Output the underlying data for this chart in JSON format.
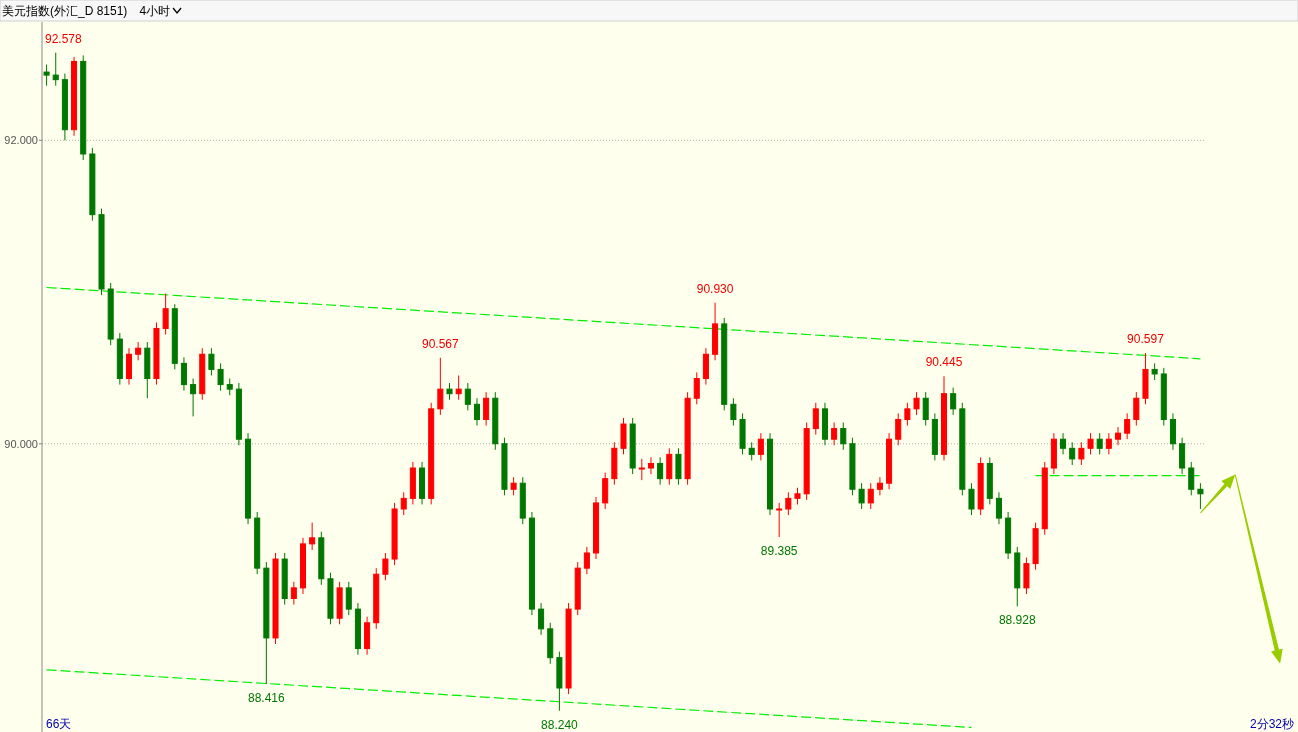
{
  "chart_data": {
    "type": "candlestick",
    "title": "美元指数(外汇_D 8151)",
    "subtitle": "4小时",
    "categories": [
      null,
      null,
      null,
      null,
      null,
      null,
      null,
      null,
      null,
      null,
      null,
      null,
      null,
      null,
      null,
      null,
      null,
      null,
      null,
      null,
      null,
      null,
      null,
      null,
      null,
      null,
      null,
      null,
      null,
      null,
      null,
      null,
      null,
      null,
      null,
      null,
      null,
      null,
      null,
      null,
      null,
      null,
      null,
      null,
      null,
      null,
      null,
      null,
      null,
      null,
      null,
      null,
      null,
      null,
      null,
      null,
      null,
      null,
      null,
      null,
      null,
      null,
      null,
      null,
      null,
      null,
      null,
      null,
      null,
      null,
      null,
      null,
      null,
      null,
      null,
      null,
      null,
      null,
      null,
      null,
      null,
      null,
      null,
      null,
      null,
      null,
      null,
      null,
      null,
      null,
      null,
      null,
      null,
      null,
      null,
      null,
      null,
      null,
      null,
      null,
      null,
      null,
      null,
      null,
      null,
      null,
      null,
      null,
      null,
      null,
      null,
      null,
      null,
      null,
      null,
      null,
      null,
      null,
      null,
      null,
      null,
      null,
      null,
      null,
      null,
      null,
      null
    ],
    "ohlc": [
      [
        92.45,
        92.5,
        92.36,
        92.43
      ],
      [
        92.43,
        92.578,
        92.36,
        92.4
      ],
      [
        92.4,
        92.44,
        92.0,
        92.07
      ],
      [
        92.07,
        92.55,
        92.03,
        92.52
      ],
      [
        92.52,
        92.56,
        91.87,
        91.91
      ],
      [
        91.91,
        91.95,
        91.47,
        91.51
      ],
      [
        91.51,
        91.55,
        90.98,
        91.02
      ],
      [
        91.02,
        91.06,
        90.65,
        90.69
      ],
      [
        90.69,
        90.73,
        90.39,
        90.43
      ],
      [
        90.43,
        90.63,
        90.39,
        90.59
      ],
      [
        90.59,
        90.67,
        90.55,
        90.63
      ],
      [
        90.63,
        90.67,
        90.3,
        90.43
      ],
      [
        90.43,
        90.8,
        90.39,
        90.76
      ],
      [
        90.76,
        90.99,
        90.72,
        90.89
      ],
      [
        90.89,
        90.92,
        90.49,
        90.53
      ],
      [
        90.53,
        90.57,
        90.35,
        90.39
      ],
      [
        90.39,
        90.43,
        90.18,
        90.33
      ],
      [
        90.33,
        90.63,
        90.29,
        90.59
      ],
      [
        90.59,
        90.63,
        90.45,
        90.49
      ],
      [
        90.49,
        90.53,
        90.35,
        90.39
      ],
      [
        90.39,
        90.43,
        90.32,
        90.36
      ],
      [
        90.36,
        90.4,
        89.99,
        90.03
      ],
      [
        90.03,
        90.07,
        89.47,
        89.51
      ],
      [
        89.51,
        89.55,
        89.14,
        89.18
      ],
      [
        89.18,
        89.22,
        88.416,
        88.72
      ],
      [
        88.72,
        89.28,
        88.68,
        89.24
      ],
      [
        89.24,
        89.28,
        88.94,
        88.98
      ],
      [
        88.98,
        89.09,
        88.94,
        89.05
      ],
      [
        89.05,
        89.38,
        89.01,
        89.34
      ],
      [
        89.34,
        89.48,
        89.3,
        89.38
      ],
      [
        89.38,
        89.42,
        89.07,
        89.11
      ],
      [
        89.11,
        89.15,
        88.81,
        88.85
      ],
      [
        88.85,
        89.09,
        88.81,
        89.05
      ],
      [
        89.05,
        89.09,
        88.87,
        88.91
      ],
      [
        88.91,
        88.95,
        88.61,
        88.65
      ],
      [
        88.65,
        88.86,
        88.61,
        88.82
      ],
      [
        88.82,
        89.18,
        88.78,
        89.14
      ],
      [
        89.14,
        89.28,
        89.1,
        89.24
      ],
      [
        89.24,
        89.61,
        89.2,
        89.57
      ],
      [
        89.57,
        89.68,
        89.53,
        89.64
      ],
      [
        89.64,
        89.88,
        89.6,
        89.84
      ],
      [
        89.84,
        89.88,
        89.6,
        89.64
      ],
      [
        89.64,
        90.27,
        89.6,
        90.23
      ],
      [
        90.23,
        90.567,
        90.19,
        90.36
      ],
      [
        90.36,
        90.4,
        90.29,
        90.33
      ],
      [
        90.33,
        90.45,
        90.29,
        90.36
      ],
      [
        90.36,
        90.4,
        90.22,
        90.26
      ],
      [
        90.26,
        90.3,
        90.12,
        90.16
      ],
      [
        90.16,
        90.34,
        90.12,
        90.3
      ],
      [
        90.3,
        90.34,
        89.96,
        90.0
      ],
      [
        90.0,
        90.04,
        89.66,
        89.7
      ],
      [
        89.7,
        89.78,
        89.66,
        89.74
      ],
      [
        89.74,
        89.78,
        89.47,
        89.51
      ],
      [
        89.51,
        89.55,
        88.87,
        88.91
      ],
      [
        88.91,
        88.95,
        88.74,
        88.78
      ],
      [
        88.78,
        88.82,
        88.55,
        88.59
      ],
      [
        88.59,
        88.63,
        88.24,
        88.39
      ],
      [
        88.39,
        88.95,
        88.35,
        88.91
      ],
      [
        88.91,
        89.22,
        88.87,
        89.18
      ],
      [
        89.18,
        89.32,
        89.14,
        89.28
      ],
      [
        89.28,
        89.65,
        89.24,
        89.61
      ],
      [
        89.61,
        89.81,
        89.57,
        89.77
      ],
      [
        89.77,
        90.01,
        89.73,
        89.97
      ],
      [
        89.97,
        90.17,
        89.93,
        90.13
      ],
      [
        90.13,
        90.17,
        89.8,
        89.84
      ],
      [
        89.84,
        89.9,
        89.76,
        89.84
      ],
      [
        89.84,
        89.91,
        89.8,
        89.87
      ],
      [
        89.87,
        89.91,
        89.73,
        89.77
      ],
      [
        89.77,
        89.97,
        89.73,
        89.93
      ],
      [
        89.93,
        89.97,
        89.73,
        89.77
      ],
      [
        89.77,
        90.34,
        89.73,
        90.3
      ],
      [
        90.3,
        90.47,
        90.26,
        90.43
      ],
      [
        90.43,
        90.63,
        90.39,
        90.59
      ],
      [
        90.59,
        90.93,
        90.55,
        90.79
      ],
      [
        90.79,
        90.83,
        90.22,
        90.26
      ],
      [
        90.26,
        90.3,
        90.12,
        90.16
      ],
      [
        90.16,
        90.2,
        89.93,
        89.97
      ],
      [
        89.97,
        90.01,
        89.89,
        89.93
      ],
      [
        89.93,
        90.07,
        89.89,
        90.03
      ],
      [
        90.03,
        90.07,
        89.53,
        89.57
      ],
      [
        89.57,
        89.61,
        89.385,
        89.57
      ],
      [
        89.57,
        89.68,
        89.53,
        89.64
      ],
      [
        89.64,
        89.71,
        89.6,
        89.67
      ],
      [
        89.67,
        90.14,
        89.63,
        90.1
      ],
      [
        90.1,
        90.27,
        90.06,
        90.23
      ],
      [
        90.23,
        90.27,
        89.99,
        90.03
      ],
      [
        90.03,
        90.14,
        89.99,
        90.1
      ],
      [
        90.1,
        90.14,
        89.96,
        90.0
      ],
      [
        90.0,
        90.04,
        89.66,
        89.7
      ],
      [
        89.7,
        89.74,
        89.57,
        89.61
      ],
      [
        89.61,
        89.74,
        89.57,
        89.7
      ],
      [
        89.7,
        89.78,
        89.66,
        89.74
      ],
      [
        89.74,
        90.07,
        89.7,
        90.03
      ],
      [
        90.03,
        90.2,
        89.99,
        90.16
      ],
      [
        90.16,
        90.27,
        90.12,
        90.23
      ],
      [
        90.23,
        90.34,
        90.19,
        90.3
      ],
      [
        90.3,
        90.34,
        90.12,
        90.16
      ],
      [
        90.16,
        90.2,
        89.89,
        89.93
      ],
      [
        89.93,
        90.445,
        89.89,
        90.33
      ],
      [
        90.33,
        90.37,
        90.19,
        90.23
      ],
      [
        90.23,
        90.27,
        89.66,
        89.7
      ],
      [
        89.7,
        89.74,
        89.53,
        89.57
      ],
      [
        89.57,
        89.91,
        89.53,
        89.87
      ],
      [
        89.87,
        89.91,
        89.6,
        89.64
      ],
      [
        89.64,
        89.68,
        89.47,
        89.51
      ],
      [
        89.51,
        89.55,
        89.24,
        89.28
      ],
      [
        89.28,
        89.32,
        88.928,
        89.05
      ],
      [
        89.05,
        89.25,
        89.01,
        89.21
      ],
      [
        89.21,
        89.48,
        89.17,
        89.44
      ],
      [
        89.44,
        89.88,
        89.4,
        89.84
      ],
      [
        89.84,
        90.07,
        89.8,
        90.03
      ],
      [
        90.03,
        90.07,
        89.93,
        89.97
      ],
      [
        89.97,
        90.01,
        89.86,
        89.9
      ],
      [
        89.9,
        90.01,
        89.86,
        89.97
      ],
      [
        89.97,
        90.07,
        89.93,
        90.03
      ],
      [
        90.03,
        90.07,
        89.93,
        89.97
      ],
      [
        89.97,
        90.07,
        89.93,
        90.03
      ],
      [
        90.03,
        90.11,
        89.99,
        90.07
      ],
      [
        90.07,
        90.2,
        90.03,
        90.16
      ],
      [
        90.16,
        90.34,
        90.12,
        90.3
      ],
      [
        90.3,
        90.597,
        90.26,
        90.49
      ],
      [
        90.49,
        90.53,
        90.42,
        90.46
      ],
      [
        90.46,
        90.5,
        90.12,
        90.16
      ],
      [
        90.16,
        90.2,
        89.96,
        90.0
      ],
      [
        90.0,
        90.04,
        89.8,
        89.84
      ],
      [
        89.84,
        89.88,
        89.66,
        89.7
      ],
      [
        89.7,
        89.74,
        89.57,
        89.67
      ]
    ],
    "series": [
      {
        "type": "line",
        "values": [
          91.03,
          null,
          null,
          null,
          null,
          null,
          null,
          null,
          null,
          null,
          null,
          null,
          null,
          null,
          null,
          null,
          null,
          null,
          null,
          null,
          null,
          null,
          null,
          null,
          null,
          null,
          null,
          null,
          null,
          null,
          null,
          null,
          null,
          null,
          null,
          null,
          null,
          null,
          null,
          null,
          null,
          null,
          null,
          null,
          null,
          null,
          null,
          null,
          null,
          null,
          null,
          null,
          null,
          null,
          null,
          null,
          null,
          null,
          null,
          null,
          null,
          null,
          null,
          null,
          null,
          null,
          null,
          null,
          null,
          null,
          null,
          null,
          null,
          null,
          null,
          null,
          null,
          null,
          null,
          null,
          null,
          null,
          null,
          null,
          null,
          null,
          null,
          null,
          null,
          null,
          null,
          null,
          null,
          null,
          null,
          null,
          null,
          null,
          null,
          null,
          null,
          null,
          null,
          null,
          null,
          null,
          null,
          null,
          null,
          null,
          null,
          null,
          null,
          null,
          null,
          null,
          null,
          null,
          null,
          null,
          null,
          null,
          null,
          null,
          null,
          null,
          90.56
        ],
        "color": "#00ee00"
      },
      {
        "type": "line",
        "values": [
          88.51,
          null,
          null,
          null,
          null,
          null,
          null,
          null,
          null,
          null,
          null,
          null,
          null,
          null,
          null,
          null,
          null,
          null,
          null,
          null,
          null,
          null,
          null,
          null,
          null,
          null,
          null,
          null,
          null,
          null,
          null,
          null,
          null,
          null,
          null,
          null,
          null,
          null,
          null,
          null,
          null,
          null,
          null,
          null,
          null,
          null,
          null,
          null,
          null,
          null,
          null,
          null,
          null,
          null,
          null,
          null,
          null,
          null,
          null,
          null,
          null,
          null,
          null,
          null,
          null,
          null,
          null,
          null,
          null,
          null,
          null,
          null,
          null,
          null,
          null,
          null,
          null,
          null,
          null,
          null,
          null,
          null,
          null,
          null,
          null,
          null,
          null,
          null,
          null,
          null,
          null,
          null,
          null,
          null,
          null,
          null,
          null,
          null,
          null,
          null,
          null,
          88.13,
          null,
          null,
          null,
          null,
          null,
          null,
          null,
          null,
          null,
          null,
          null,
          null,
          null,
          null,
          null,
          null,
          null,
          null,
          null,
          null,
          null,
          null,
          null,
          null,
          null
        ],
        "color": "#00ee00"
      },
      {
        "type": "line",
        "values": [
          null,
          null,
          null,
          null,
          null,
          null,
          null,
          null,
          null,
          null,
          null,
          null,
          null,
          null,
          null,
          null,
          null,
          null,
          null,
          null,
          null,
          null,
          null,
          null,
          null,
          null,
          null,
          null,
          null,
          null,
          null,
          null,
          null,
          null,
          null,
          null,
          null,
          null,
          null,
          null,
          null,
          null,
          null,
          null,
          null,
          null,
          null,
          null,
          null,
          null,
          null,
          null,
          null,
          null,
          null,
          null,
          null,
          null,
          null,
          null,
          null,
          null,
          null,
          null,
          null,
          null,
          null,
          null,
          null,
          null,
          null,
          null,
          null,
          null,
          null,
          null,
          null,
          null,
          null,
          null,
          null,
          null,
          null,
          null,
          null,
          null,
          null,
          null,
          null,
          null,
          null,
          null,
          null,
          null,
          null,
          null,
          null,
          null,
          null,
          null,
          null,
          null,
          null,
          null,
          null,
          null,
          null,
          null,
          89.79,
          null,
          null,
          null,
          null,
          null,
          null,
          null,
          null,
          null,
          null,
          null,
          null,
          null,
          null,
          null,
          null,
          null,
          89.79
        ],
        "color": "#00ee00"
      }
    ],
    "line_style": "dashed",
    "ylim": [
      88.1,
      92.78
    ],
    "yticks": [
      {
        "value": 92,
        "label": "92.000"
      },
      {
        "value": 90,
        "label": "90.000"
      }
    ],
    "tick_labels": "y",
    "grid": "y",
    "annotations": [
      "92.578",
      {
        "text": "88.416",
        "y": 88.416
      },
      {
        "text": "90.567",
        "y": 90.567
      },
      {
        "text": "88.240",
        "y": 88.24
      },
      {
        "text": "90.930",
        "y": 90.93
      },
      {
        "text": "89.385",
        "y": 89.385
      },
      {
        "text": "90.445",
        "y": 90.445
      },
      {
        "text": "88.928",
        "y": 88.928
      },
      {
        "text": "90.597",
        "y": 90.597
      },
      "66天",
      "2分32秒"
    ]
  }
}
